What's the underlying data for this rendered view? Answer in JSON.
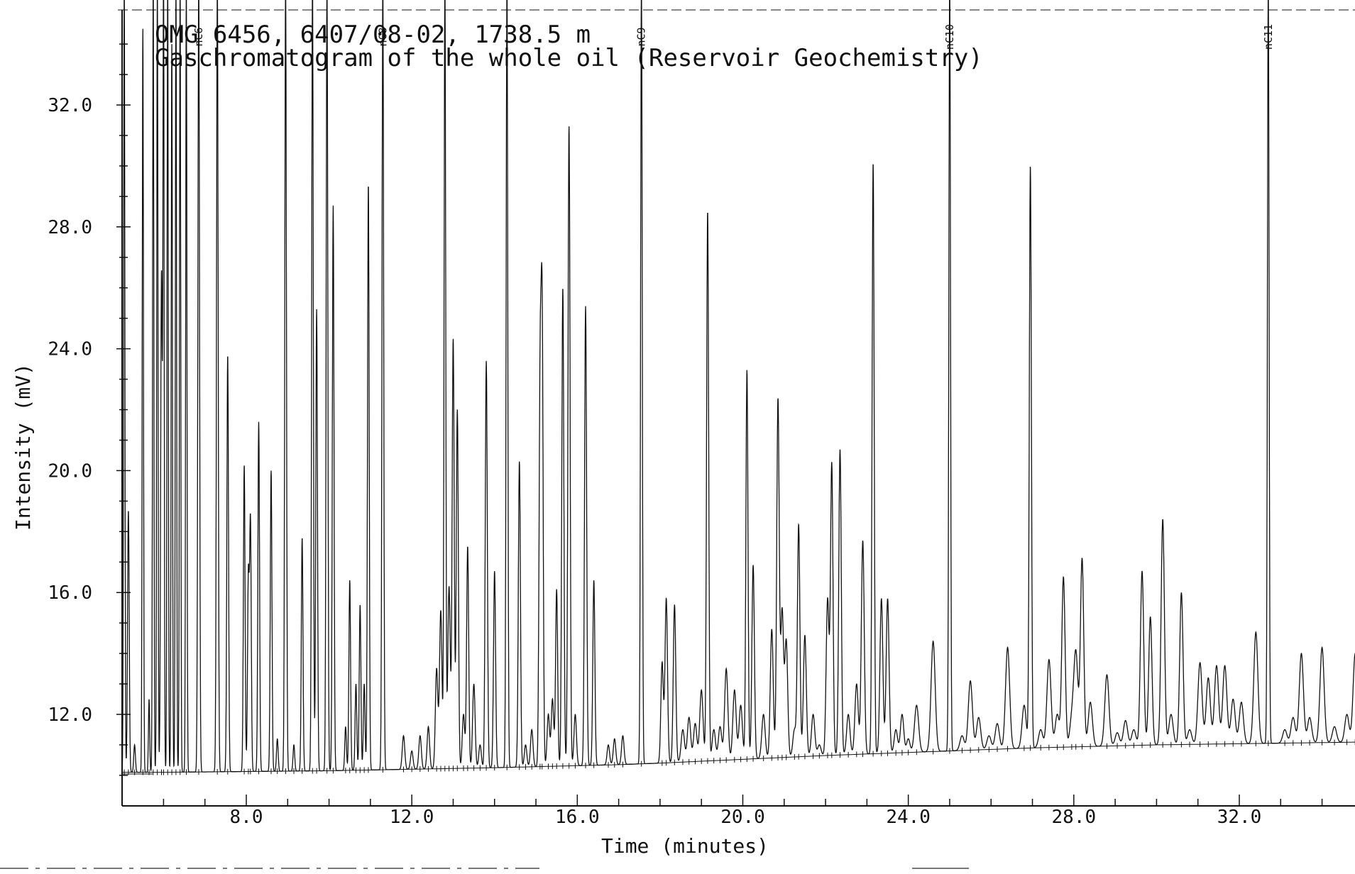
{
  "chart_data": {
    "type": "line",
    "title": "OMG 6456, 6407/08-02, 1738.5 m",
    "subtitle": "Gaschromatogram of the whole oil (Reservoir Geochemistry)",
    "xlabel": "Time (minutes)",
    "ylabel": "Intensity (mV)",
    "xlim": [
      5.0,
      35.4
    ],
    "ylim": [
      9.0,
      35.2
    ],
    "x_ticks": [
      8.0,
      12.0,
      16.0,
      20.0,
      24.0,
      28.0,
      32.0
    ],
    "y_ticks": [
      12.0,
      16.0,
      20.0,
      24.0,
      28.0,
      32.0
    ],
    "x_tick_labels": [
      "8.0",
      "12.0",
      "16.0",
      "20.0",
      "24.0",
      "28.0",
      "32.0"
    ],
    "y_tick_labels": [
      "12.0",
      "16.0",
      "20.0",
      "24.0",
      "28.0",
      "32.0"
    ],
    "grid": false,
    "legend": "none",
    "baseline": {
      "x": [
        5.0,
        6.0,
        10.0,
        14.0,
        17.0,
        18.0,
        22.0,
        27.0,
        30.0,
        35.4
      ],
      "y": [
        10.1,
        10.1,
        10.15,
        10.25,
        10.35,
        10.4,
        10.65,
        10.9,
        11.0,
        11.1
      ]
    },
    "labeled_peaks": [
      {
        "label": "nC6",
        "x": 6.85
      },
      {
        "label": "nC8",
        "x": 11.3
      },
      {
        "label": "nC9",
        "x": 17.55
      },
      {
        "label": "nC10",
        "x": 25.0
      },
      {
        "label": "nC11",
        "x": 32.7
      }
    ],
    "series": [
      {
        "peaks": [
          [
            5.05,
            36.0,
            0.015
          ],
          [
            5.15,
            18.7,
            0.02
          ],
          [
            5.3,
            11.0,
            0.02
          ],
          [
            5.5,
            34.5,
            0.015
          ],
          [
            5.65,
            12.5,
            0.015
          ],
          [
            5.75,
            36.0,
            0.015
          ],
          [
            5.85,
            36.0,
            0.015
          ],
          [
            5.95,
            26.5,
            0.02
          ],
          [
            6.0,
            36.0,
            0.015
          ],
          [
            6.1,
            36.0,
            0.015
          ],
          [
            6.2,
            34.0,
            0.015
          ],
          [
            6.3,
            36.0,
            0.015
          ],
          [
            6.4,
            36.0,
            0.015
          ],
          [
            6.55,
            36.0,
            0.015
          ],
          [
            6.85,
            36.0,
            0.02
          ],
          [
            7.3,
            36.0,
            0.02
          ],
          [
            7.55,
            23.8,
            0.02
          ],
          [
            7.95,
            20.2,
            0.02
          ],
          [
            8.05,
            16.5,
            0.02
          ],
          [
            8.1,
            18.3,
            0.02
          ],
          [
            8.3,
            21.6,
            0.02
          ],
          [
            8.6,
            20.0,
            0.02
          ],
          [
            8.75,
            11.2,
            0.02
          ],
          [
            8.95,
            36.0,
            0.02
          ],
          [
            9.15,
            11.0,
            0.02
          ],
          [
            9.35,
            17.8,
            0.02
          ],
          [
            9.6,
            36.0,
            0.02
          ],
          [
            9.7,
            25.3,
            0.02
          ],
          [
            9.95,
            36.0,
            0.02
          ],
          [
            10.1,
            28.7,
            0.02
          ],
          [
            10.4,
            11.6,
            0.02
          ],
          [
            10.5,
            16.4,
            0.02
          ],
          [
            10.65,
            13.0,
            0.02
          ],
          [
            10.75,
            15.6,
            0.02
          ],
          [
            10.85,
            13.0,
            0.02
          ],
          [
            10.95,
            29.4,
            0.02
          ],
          [
            11.3,
            36.0,
            0.02
          ],
          [
            11.8,
            11.3,
            0.03
          ],
          [
            12.0,
            10.8,
            0.03
          ],
          [
            12.2,
            11.3,
            0.03
          ],
          [
            12.4,
            11.6,
            0.03
          ],
          [
            12.6,
            13.5,
            0.03
          ],
          [
            12.7,
            15.4,
            0.03
          ],
          [
            12.8,
            36.0,
            0.02
          ],
          [
            12.9,
            16.2,
            0.03
          ],
          [
            13.0,
            24.3,
            0.025
          ],
          [
            13.1,
            22.0,
            0.025
          ],
          [
            13.25,
            12.0,
            0.03
          ],
          [
            13.35,
            17.5,
            0.025
          ],
          [
            13.5,
            13.0,
            0.03
          ],
          [
            13.65,
            11.0,
            0.03
          ],
          [
            13.8,
            23.6,
            0.025
          ],
          [
            14.0,
            16.7,
            0.025
          ],
          [
            14.3,
            36.0,
            0.02
          ],
          [
            14.6,
            20.3,
            0.025
          ],
          [
            14.75,
            11.0,
            0.03
          ],
          [
            14.9,
            11.5,
            0.03
          ],
          [
            15.1,
            22.3,
            0.025
          ],
          [
            15.15,
            24.6,
            0.025
          ],
          [
            15.3,
            12.0,
            0.03
          ],
          [
            15.4,
            12.5,
            0.03
          ],
          [
            15.5,
            16.1,
            0.025
          ],
          [
            15.65,
            26.0,
            0.025
          ],
          [
            15.8,
            31.3,
            0.025
          ],
          [
            15.95,
            12.0,
            0.03
          ],
          [
            16.2,
            25.4,
            0.025
          ],
          [
            16.4,
            16.4,
            0.025
          ],
          [
            16.75,
            11.0,
            0.03
          ],
          [
            16.9,
            11.2,
            0.03
          ],
          [
            17.1,
            11.3,
            0.03
          ],
          [
            17.55,
            36.0,
            0.02
          ],
          [
            18.05,
            13.7,
            0.03
          ],
          [
            18.15,
            15.8,
            0.03
          ],
          [
            18.35,
            15.6,
            0.03
          ],
          [
            18.55,
            11.5,
            0.04
          ],
          [
            18.7,
            11.9,
            0.04
          ],
          [
            18.85,
            11.7,
            0.04
          ],
          [
            19.0,
            12.8,
            0.04
          ],
          [
            19.15,
            28.5,
            0.025
          ],
          [
            19.3,
            11.5,
            0.04
          ],
          [
            19.45,
            11.6,
            0.04
          ],
          [
            19.6,
            13.5,
            0.04
          ],
          [
            19.8,
            12.8,
            0.04
          ],
          [
            19.95,
            12.3,
            0.04
          ],
          [
            20.1,
            23.3,
            0.025
          ],
          [
            20.25,
            16.9,
            0.03
          ],
          [
            20.5,
            12.0,
            0.04
          ],
          [
            20.7,
            14.8,
            0.035
          ],
          [
            20.85,
            22.3,
            0.03
          ],
          [
            20.95,
            15.4,
            0.035
          ],
          [
            21.05,
            14.4,
            0.035
          ],
          [
            21.25,
            11.5,
            0.04
          ],
          [
            21.35,
            18.2,
            0.03
          ],
          [
            21.5,
            14.6,
            0.035
          ],
          [
            21.7,
            12.0,
            0.04
          ],
          [
            21.85,
            11.0,
            0.04
          ],
          [
            22.05,
            15.8,
            0.035
          ],
          [
            22.15,
            20.2,
            0.03
          ],
          [
            22.35,
            20.7,
            0.03
          ],
          [
            22.55,
            12.0,
            0.04
          ],
          [
            22.75,
            13.0,
            0.04
          ],
          [
            22.9,
            17.7,
            0.035
          ],
          [
            23.15,
            30.1,
            0.025
          ],
          [
            23.35,
            15.8,
            0.035
          ],
          [
            23.5,
            15.8,
            0.035
          ],
          [
            23.7,
            11.5,
            0.04
          ],
          [
            23.85,
            12.0,
            0.04
          ],
          [
            24.0,
            11.2,
            0.04
          ],
          [
            24.2,
            12.3,
            0.05
          ],
          [
            24.6,
            14.4,
            0.05
          ],
          [
            25.0,
            36.0,
            0.02
          ],
          [
            25.3,
            11.3,
            0.05
          ],
          [
            25.5,
            13.1,
            0.05
          ],
          [
            25.7,
            11.9,
            0.05
          ],
          [
            25.95,
            11.3,
            0.05
          ],
          [
            26.15,
            11.7,
            0.05
          ],
          [
            26.4,
            14.2,
            0.05
          ],
          [
            26.8,
            12.3,
            0.05
          ],
          [
            26.95,
            30.0,
            0.025
          ],
          [
            27.2,
            11.5,
            0.05
          ],
          [
            27.4,
            13.8,
            0.05
          ],
          [
            27.6,
            12.0,
            0.05
          ],
          [
            27.75,
            16.5,
            0.04
          ],
          [
            27.95,
            11.8,
            0.05
          ],
          [
            28.05,
            14.0,
            0.05
          ],
          [
            28.2,
            17.1,
            0.04
          ],
          [
            28.4,
            12.4,
            0.05
          ],
          [
            28.8,
            13.3,
            0.05
          ],
          [
            29.05,
            11.4,
            0.05
          ],
          [
            29.25,
            11.8,
            0.05
          ],
          [
            29.45,
            11.5,
            0.05
          ],
          [
            29.65,
            16.7,
            0.04
          ],
          [
            29.85,
            15.2,
            0.04
          ],
          [
            30.15,
            18.4,
            0.04
          ],
          [
            30.35,
            12.0,
            0.05
          ],
          [
            30.6,
            16.0,
            0.04
          ],
          [
            30.8,
            11.5,
            0.05
          ],
          [
            31.05,
            13.7,
            0.05
          ],
          [
            31.25,
            13.2,
            0.05
          ],
          [
            31.45,
            13.6,
            0.05
          ],
          [
            31.65,
            13.6,
            0.05
          ],
          [
            31.85,
            12.5,
            0.05
          ],
          [
            32.05,
            12.4,
            0.05
          ],
          [
            32.4,
            14.7,
            0.05
          ],
          [
            32.7,
            36.0,
            0.02
          ],
          [
            33.1,
            11.5,
            0.05
          ],
          [
            33.3,
            11.9,
            0.05
          ],
          [
            33.5,
            14.0,
            0.05
          ],
          [
            33.7,
            11.9,
            0.05
          ],
          [
            34.0,
            14.2,
            0.05
          ],
          [
            34.3,
            11.6,
            0.05
          ],
          [
            34.6,
            12.0,
            0.05
          ],
          [
            34.8,
            14.0,
            0.05
          ],
          [
            35.05,
            12.6,
            0.05
          ],
          [
            35.3,
            17.5,
            0.04
          ]
        ]
      }
    ]
  }
}
